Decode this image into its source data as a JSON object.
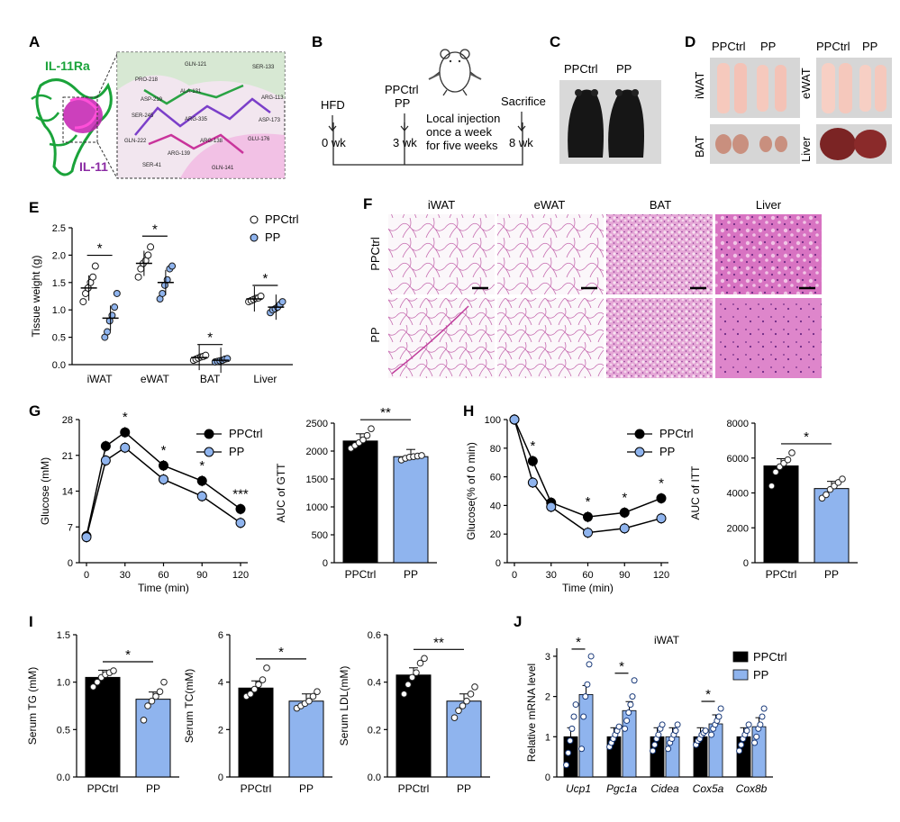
{
  "colors": {
    "ppctrl": "#000000",
    "pp": "#8fb4ee",
    "green": "#1aa33a",
    "purple": "#8a2aa3"
  },
  "panelA": {
    "letter": "A",
    "receptor": "IL-11Ra",
    "ligand": "IL-11",
    "residues": [
      "GLN-121",
      "SER-133",
      "PRO-218",
      "ALA-131",
      "ARG-113",
      "ASP-219",
      "SER-245",
      "ARG-335",
      "ASP-173",
      "GLN-222",
      "ARG-138",
      "GLU-176",
      "ARG-139",
      "SER-41",
      "GLN-141"
    ]
  },
  "panelB": {
    "letter": "B",
    "hfd": "HFD",
    "t0": "0 wk",
    "tr1": "PPCtrl",
    "tr2": "PP",
    "t3": "3 wk",
    "injection": [
      "Local injection",
      "once a week",
      "for five weeks"
    ],
    "sacrifice": "Sacrifice",
    "t8": "8 wk"
  },
  "panelC": {
    "letter": "C",
    "l1": "PPCtrl",
    "l2": "PP"
  },
  "panelD": {
    "letter": "D",
    "g1": "PPCtrl",
    "g2": "PP",
    "g3": "PPCtrl",
    "g4": "PP",
    "t1": "iWAT",
    "t2": "eWAT",
    "t3": "BAT",
    "t4": "Liver"
  },
  "panelF": {
    "letter": "F",
    "cols": [
      "iWAT",
      "eWAT",
      "BAT",
      "Liver"
    ],
    "rows": [
      "PPCtrl",
      "PP"
    ]
  },
  "chart_data": [
    {
      "panel": "E",
      "type": "scatter",
      "ylabel": "Tissue weight (g)",
      "ylim": [
        0,
        2.5
      ],
      "yticks": [
        "0.0",
        "0.5",
        "1.0",
        "1.5",
        "2.0",
        "2.5"
      ],
      "categories": [
        "iWAT",
        "eWAT",
        "BAT",
        "Liver"
      ],
      "series": [
        {
          "name": "PPCtrl",
          "means": [
            1.4,
            1.85,
            0.13,
            1.2
          ],
          "points": [
            [
              1.15,
              1.3,
              1.4,
              1.5,
              1.6,
              1.8
            ],
            [
              1.6,
              1.75,
              1.85,
              1.9,
              2.0,
              2.15
            ],
            [
              0.08,
              0.1,
              0.12,
              0.14,
              0.15,
              0.17
            ],
            [
              1.15,
              1.17,
              1.19,
              1.21,
              1.22,
              1.25
            ]
          ]
        },
        {
          "name": "PP",
          "means": [
            0.85,
            1.5,
            0.08,
            1.05
          ],
          "points": [
            [
              0.5,
              0.6,
              0.8,
              0.9,
              1.05,
              1.3
            ],
            [
              1.2,
              1.3,
              1.45,
              1.55,
              1.75,
              1.8
            ],
            [
              0.05,
              0.06,
              0.07,
              0.08,
              0.1,
              0.11
            ],
            [
              0.95,
              1.0,
              1.02,
              1.05,
              1.1,
              1.15
            ]
          ]
        }
      ],
      "significance": [
        "*",
        "*",
        "*",
        "*"
      ],
      "legend": [
        "PPCtrl",
        "PP"
      ]
    },
    {
      "panel": "G",
      "type": "line",
      "xlabel": "Time (min)",
      "ylabel": "Glucose (mM)",
      "x": [
        0,
        15,
        30,
        60,
        90,
        120
      ],
      "xticks": [
        "0",
        "30",
        "60",
        "90",
        "120"
      ],
      "ylim": [
        0,
        28
      ],
      "yticks": [
        "0",
        "7",
        "14",
        "21",
        "28"
      ],
      "series": [
        {
          "name": "PPCtrl",
          "values": [
            5.2,
            22.8,
            25.5,
            19,
            16,
            10.5
          ]
        },
        {
          "name": "PP",
          "values": [
            5.0,
            20.0,
            22.5,
            16.3,
            13,
            7.8
          ]
        }
      ],
      "significance": [
        "",
        "",
        "*",
        "*",
        "*",
        "***"
      ]
    },
    {
      "panel": "G",
      "type": "bar",
      "ylabel": "AUC of GTT",
      "categories": [
        "PPCtrl",
        "PP"
      ],
      "values": [
        2180,
        1900
      ],
      "ylim": [
        0,
        2500
      ],
      "yticks": [
        "0",
        "500",
        "1000",
        "1500",
        "2000",
        "2500"
      ],
      "points": [
        [
          2050,
          2100,
          2150,
          2200,
          2280,
          2400
        ],
        [
          1840,
          1870,
          1890,
          1900,
          1910,
          1920
        ]
      ],
      "significance": "**"
    },
    {
      "panel": "H",
      "type": "line",
      "xlabel": "Time (min)",
      "ylabel": "Glucose(% of 0 min)",
      "x": [
        0,
        15,
        30,
        60,
        90,
        120
      ],
      "xticks": [
        "0",
        "30",
        "60",
        "90",
        "120"
      ],
      "ylim": [
        0,
        100
      ],
      "yticks": [
        "0",
        "20",
        "40",
        "60",
        "80",
        "100"
      ],
      "series": [
        {
          "name": "PPCtrl",
          "values": [
            100,
            71,
            42,
            32,
            35,
            45
          ]
        },
        {
          "name": "PP",
          "values": [
            100,
            56,
            39,
            21,
            24,
            31
          ]
        }
      ],
      "significance": [
        "",
        "*",
        "",
        "*",
        "*",
        "*"
      ]
    },
    {
      "panel": "H",
      "type": "bar",
      "ylabel": "AUC of ITT",
      "categories": [
        "PPCtrl",
        "PP"
      ],
      "values": [
        5550,
        4250
      ],
      "ylim": [
        0,
        8000
      ],
      "yticks": [
        "0",
        "2000",
        "4000",
        "6000",
        "8000"
      ],
      "points": [
        [
          4400,
          5200,
          5500,
          5700,
          5900,
          6300
        ],
        [
          3700,
          3900,
          4200,
          4400,
          4600,
          4800
        ]
      ],
      "significance": "*"
    },
    {
      "panel": "I",
      "type": "bar",
      "ylabel": "Serum TG (mM)",
      "categories": [
        "PPCtrl",
        "PP"
      ],
      "values": [
        1.05,
        0.82
      ],
      "ylim": [
        0,
        1.5
      ],
      "yticks": [
        "0.0",
        "0.5",
        "1.0",
        "1.5"
      ],
      "points": [
        [
          0.95,
          1.0,
          1.05,
          1.08,
          1.1,
          1.12
        ],
        [
          0.6,
          0.75,
          0.8,
          0.85,
          0.9,
          1.0
        ]
      ],
      "significance": "*"
    },
    {
      "panel": "I",
      "type": "bar",
      "ylabel": "Serum TC(mM)",
      "categories": [
        "PPCtrl",
        "PP"
      ],
      "values": [
        3.75,
        3.2
      ],
      "ylim": [
        0,
        6
      ],
      "yticks": [
        "0",
        "2",
        "4",
        "6"
      ],
      "points": [
        [
          3.4,
          3.5,
          3.7,
          3.9,
          4.1,
          4.6
        ],
        [
          2.9,
          3.0,
          3.1,
          3.2,
          3.4,
          3.6
        ]
      ],
      "significance": "*"
    },
    {
      "panel": "I",
      "type": "bar",
      "ylabel": "Serum LDL(mM)",
      "categories": [
        "PPCtrl",
        "PP"
      ],
      "values": [
        0.43,
        0.32
      ],
      "ylim": [
        0,
        0.6
      ],
      "yticks": [
        "0.0",
        "0.2",
        "0.4",
        "0.6"
      ],
      "points": [
        [
          0.35,
          0.39,
          0.42,
          0.44,
          0.48,
          0.5
        ],
        [
          0.25,
          0.28,
          0.3,
          0.32,
          0.35,
          0.38
        ]
      ],
      "significance": "**"
    },
    {
      "panel": "J",
      "type": "bar",
      "title": "iWAT",
      "ylabel": "Relative mRNA level",
      "ylim": [
        0,
        3.2
      ],
      "categories": [
        "Ucp1",
        "Pgc1a",
        "Cidea",
        "Cox5a",
        "Cox8b"
      ],
      "series": [
        {
          "name": "PPCtrl",
          "values": [
            1.0,
            1.0,
            1.0,
            1.0,
            1.0
          ],
          "points": [
            [
              0.3,
              0.6,
              0.9,
              1.2,
              1.5,
              1.8
            ],
            [
              0.75,
              0.85,
              0.95,
              1.05,
              1.15,
              1.25
            ],
            [
              0.65,
              0.8,
              0.95,
              1.05,
              1.2,
              1.3
            ],
            [
              0.8,
              0.9,
              0.95,
              1.05,
              1.1,
              1.15
            ],
            [
              0.65,
              0.8,
              0.95,
              1.05,
              1.15,
              1.3
            ]
          ]
        },
        {
          "name": "PP",
          "values": [
            2.05,
            1.65,
            1.0,
            1.32,
            1.25
          ],
          "points": [
            [
              0.7,
              1.5,
              2.0,
              2.3,
              2.8,
              3.0
            ],
            [
              1.2,
              1.4,
              1.6,
              1.8,
              2.0,
              2.4
            ],
            [
              0.7,
              0.85,
              0.95,
              1.05,
              1.15,
              1.3
            ],
            [
              1.05,
              1.2,
              1.3,
              1.4,
              1.5,
              1.7
            ],
            [
              0.85,
              1.0,
              1.2,
              1.3,
              1.5,
              1.7
            ]
          ]
        }
      ],
      "significance": [
        "*",
        "*",
        "",
        "*",
        ""
      ],
      "legend": [
        "PPCtrl",
        "PP"
      ]
    }
  ],
  "panel_letters": {
    "E": "E",
    "G": "G",
    "H": "H",
    "I": "I",
    "J": "J"
  }
}
